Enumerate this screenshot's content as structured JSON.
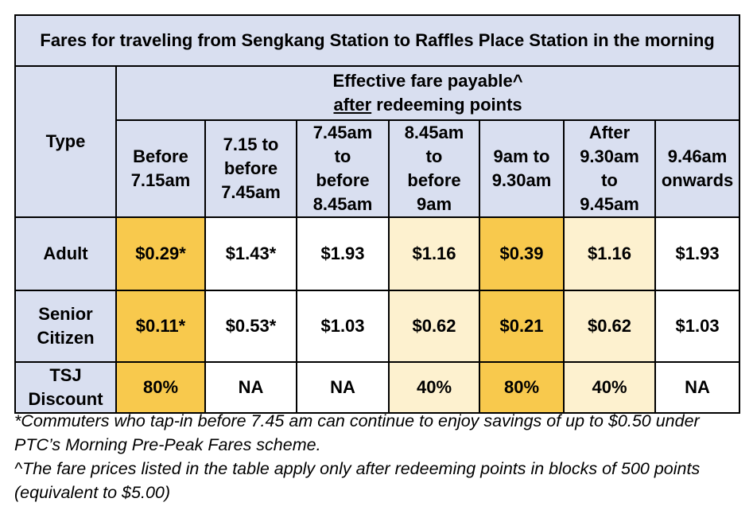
{
  "title": "Fares for traveling from Sengkang Station to Raffles Place Station in the morning",
  "header": {
    "type_label": "Type",
    "effective_line1": "Effective fare payable^",
    "effective_line2_underlined": "after",
    "effective_line2_rest": " redeeming points",
    "columns": [
      "Before\n7.15am",
      "7.15 to\nbefore\n7.45am",
      "7.45am\nto\nbefore\n8.45am",
      "8.45am\nto\nbefore\n9am",
      "9am to\n9.30am",
      "After\n9.30am\nto\n9.45am",
      "9.46am\nonwards"
    ]
  },
  "rows": [
    {
      "label": "Adult",
      "values": [
        "$0.29*",
        "$1.43*",
        "$1.93",
        "$1.16",
        "$0.39",
        "$1.16",
        "$1.93"
      ]
    },
    {
      "label": "Senior\nCitizen",
      "values": [
        "$0.11*",
        "$0.53*",
        "$1.03",
        "$0.62",
        "$0.21",
        "$0.62",
        "$1.03"
      ]
    },
    {
      "label": "TSJ\nDiscount",
      "values": [
        "80%",
        "NA",
        "NA",
        "40%",
        "80%",
        "40%",
        "NA"
      ]
    }
  ],
  "colors": {
    "header_bg": "#d9dff0",
    "strong_highlight": "#f8c94d",
    "light_highlight": "#fdf1cf",
    "no_highlight": "#ffffff"
  },
  "footnotes": [
    "*Commuters who tap-in before 7.45 am can continue to enjoy savings of up to $0.50 under PTC’s Morning Pre-Peak Fares scheme.",
    "^The fare prices listed in the table apply only after redeeming points in blocks of 500 points (equivalent to $5.00)"
  ]
}
